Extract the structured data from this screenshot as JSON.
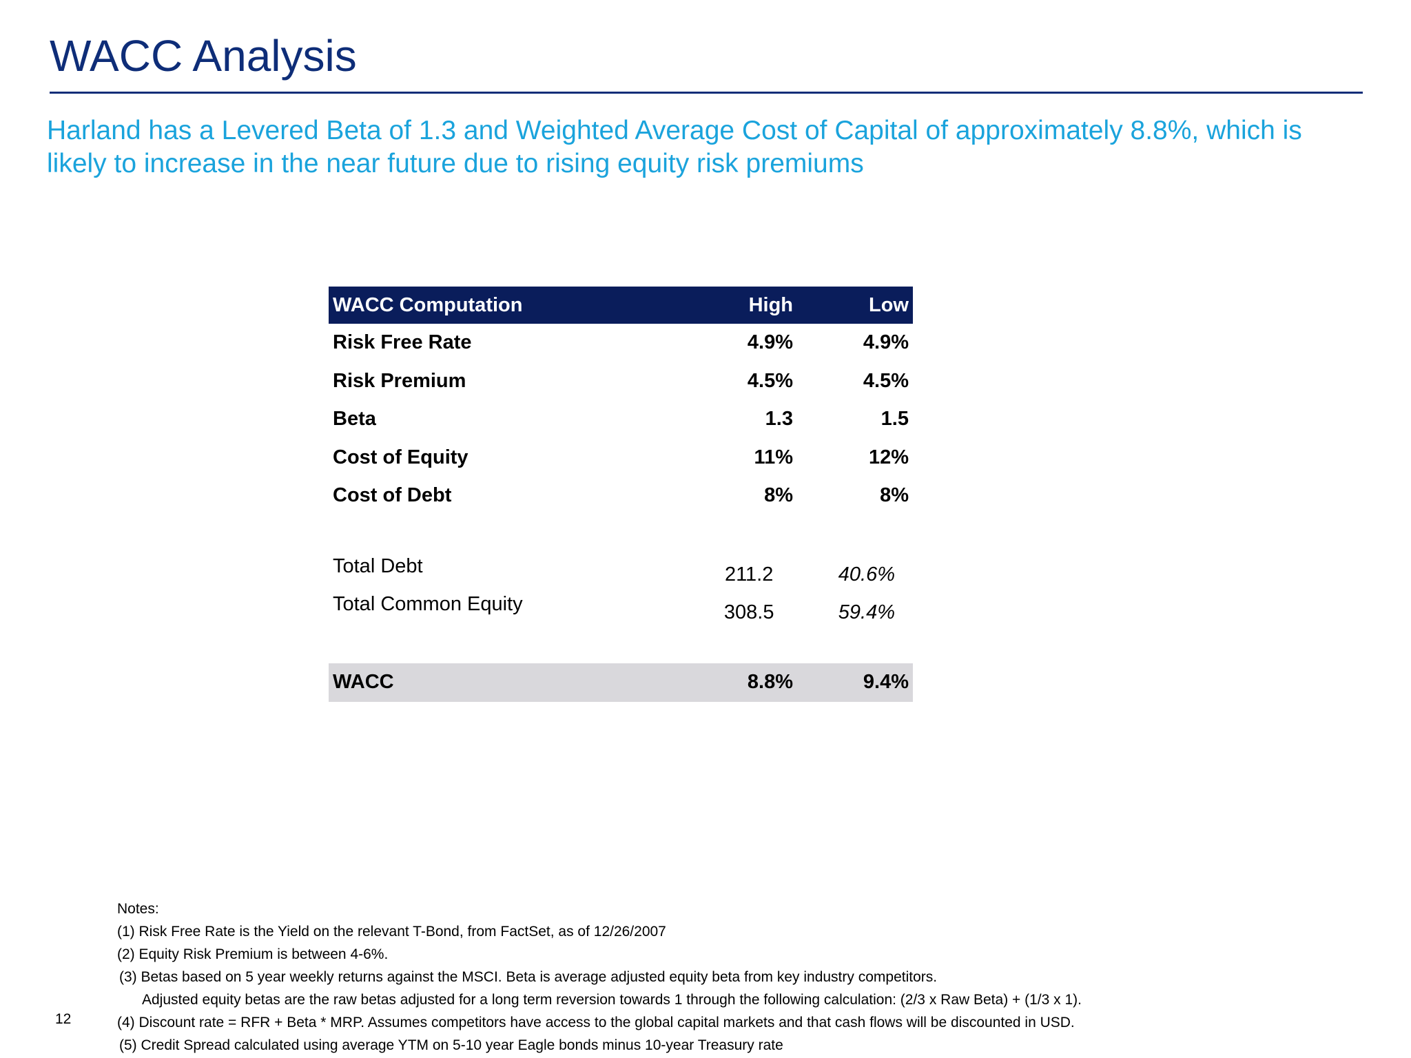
{
  "slide": {
    "title": "WACC Analysis",
    "subtitle": "Harland has a Levered Beta of 1.3 and Weighted Average Cost of Capital of approximately 8.8%, which is likely to increase in the near future due to rising equity risk premiums",
    "page_number": "12",
    "colors": {
      "title": "#0e2d78",
      "subtitle": "#1aa3dc",
      "table_header": "#0a1d5b",
      "total_row": "#d9d8dc"
    }
  },
  "table": {
    "header": {
      "label": "WACC Computation",
      "high": "High",
      "low": "Low"
    },
    "rows": [
      {
        "label": "Risk Free Rate",
        "high": "4.9%",
        "low": "4.9%"
      },
      {
        "label": "Risk Premium",
        "high": "4.5%",
        "low": "4.5%"
      },
      {
        "label": "Beta",
        "high": "1.3",
        "low": "1.5"
      },
      {
        "label": "Cost of Equity",
        "high": "11%",
        "low": "12%"
      },
      {
        "label": "Cost of Debt",
        "high": "8%",
        "low": "8%"
      }
    ],
    "capital": [
      {
        "label": "Total Debt",
        "value": "211.2",
        "pct": "40.6%"
      },
      {
        "label": "Total Common Equity",
        "value": "308.5",
        "pct": "59.4%"
      }
    ],
    "total": {
      "label": "WACC",
      "high": "8.8%",
      "low": "9.4%"
    }
  },
  "notes": {
    "heading": "Notes:",
    "items": [
      "(1) Risk Free Rate is the Yield on the relevant T-Bond, from FactSet, as of 12/26/2007",
      "(2) Equity Risk Premium is between 4-6%.",
      "(3) Betas based on 5 year weekly returns against the MSCI. Beta is average adjusted equity beta from key industry competitors.",
      "Adjusted equity betas are the raw betas adjusted for a long term reversion towards 1 through the following calculation: (2/3 x Raw Beta) + (1/3 x 1).",
      "(4) Discount rate = RFR + Beta * MRP. Assumes competitors have access to the global capital markets and that cash flows will be discounted in USD.",
      "(5) Credit Spread calculated using average YTM on 5-10 year Eagle bonds minus 10-year Treasury rate"
    ]
  }
}
